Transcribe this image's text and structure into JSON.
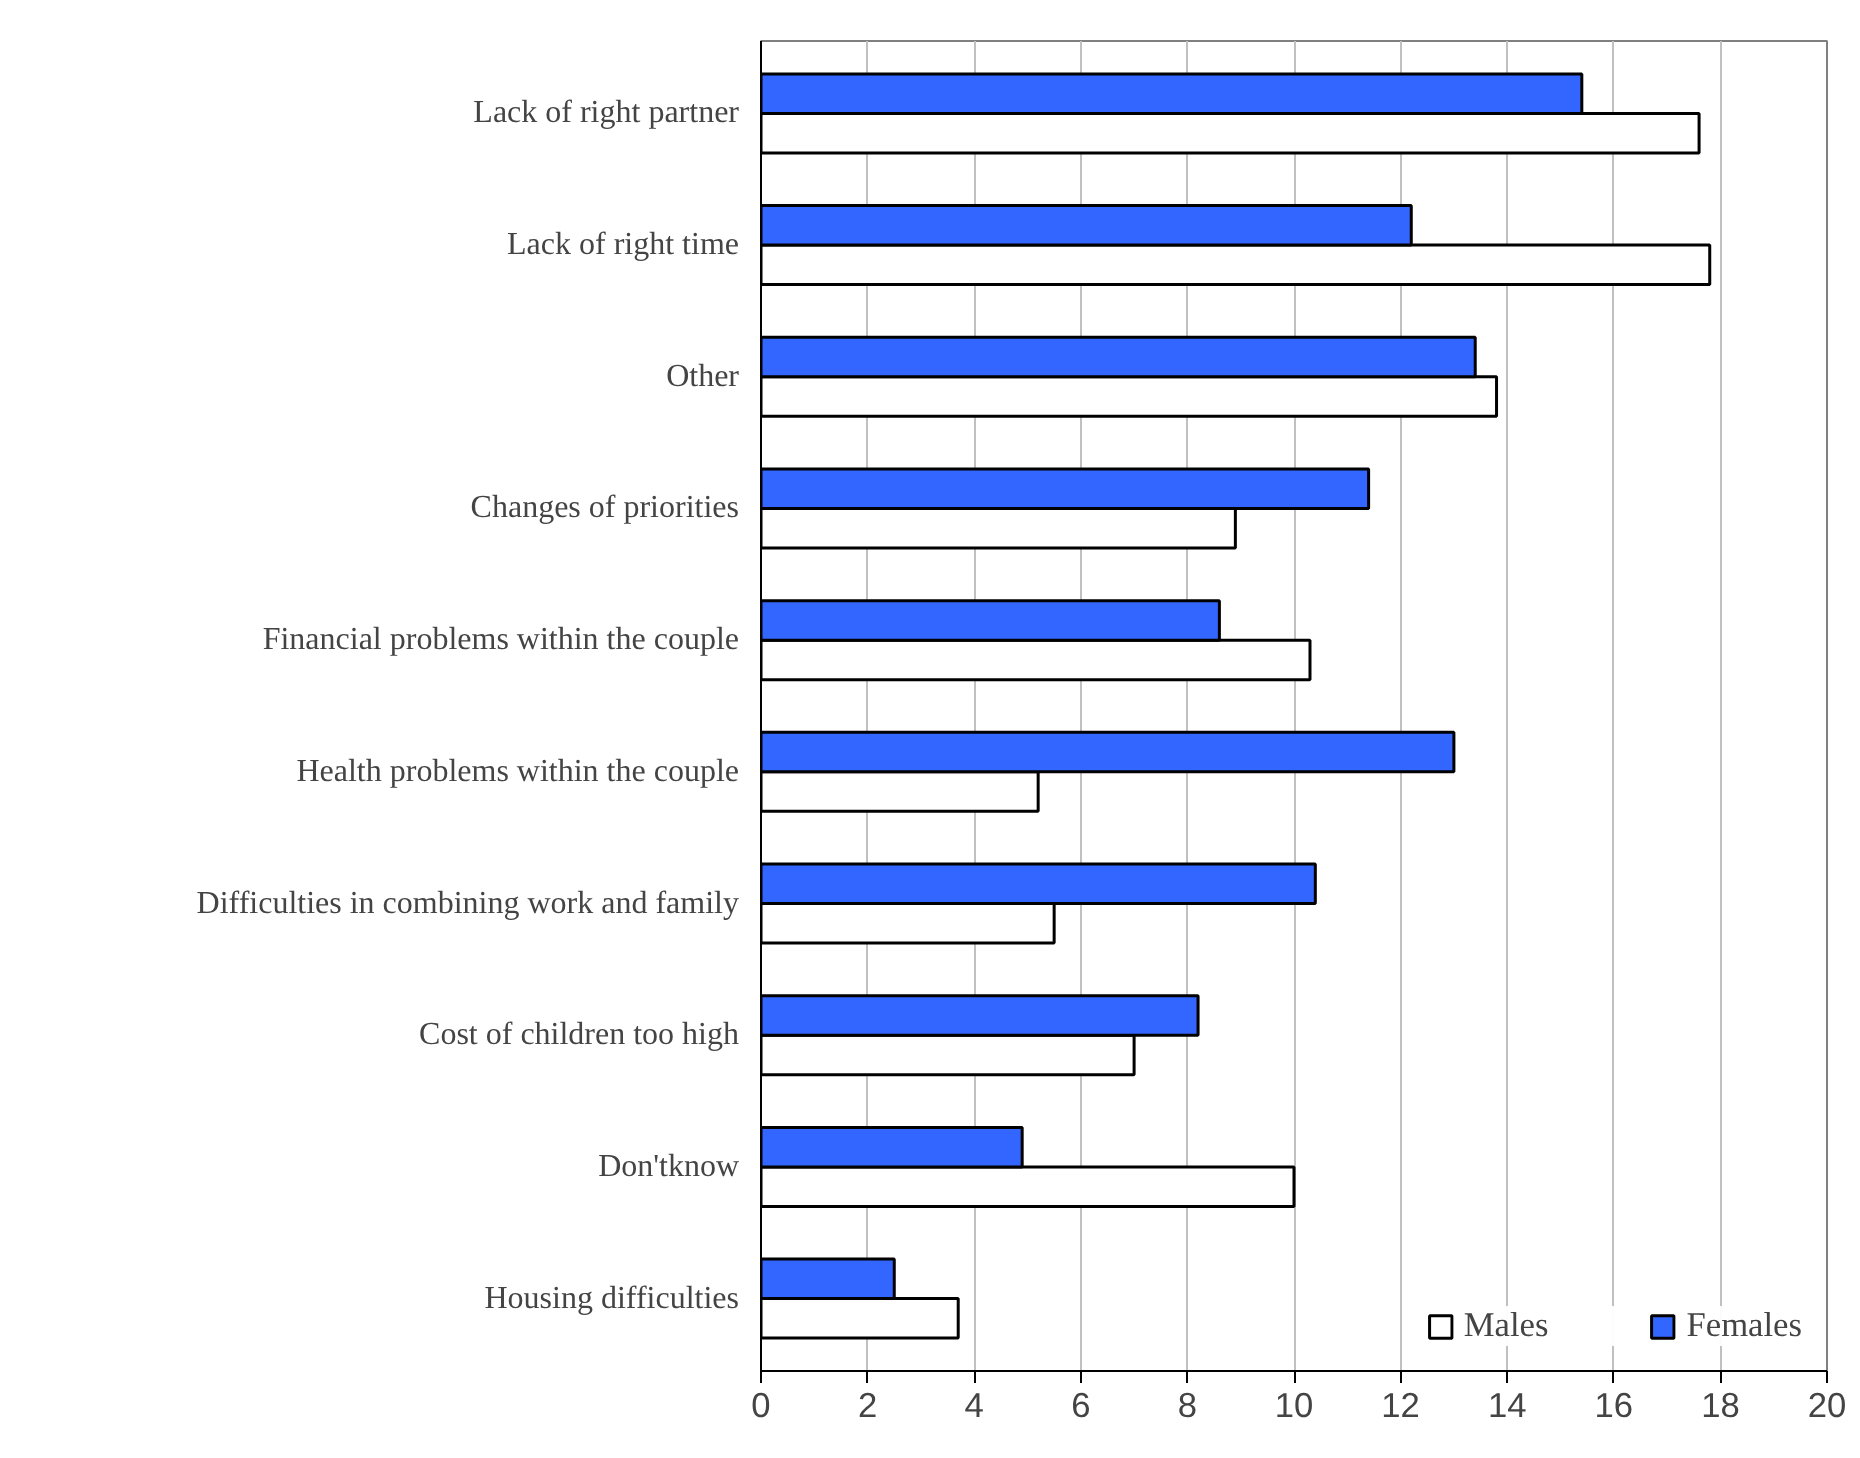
{
  "chart_data": {
    "type": "bar",
    "orientation": "horizontal",
    "categories": [
      "Lack of right partner",
      "Lack of right time",
      "Other",
      "Changes of priorities",
      "Financial problems within the couple",
      "Health problems within the couple",
      "Difficulties in combining work and family",
      "Cost of children too high",
      "Don'tknow",
      "Housing difficulties"
    ],
    "series": [
      {
        "name": "Males",
        "color": "#ffffff",
        "values": [
          17.6,
          17.8,
          13.8,
          8.9,
          10.3,
          5.2,
          5.5,
          7.0,
          10.0,
          3.7
        ]
      },
      {
        "name": "Females",
        "color": "#3366ff",
        "values": [
          15.4,
          12.2,
          13.4,
          11.4,
          8.6,
          13.0,
          10.4,
          8.2,
          4.9,
          2.5
        ]
      }
    ],
    "xlim": [
      0,
      20
    ],
    "xticks": [
      0,
      2,
      4,
      6,
      8,
      10,
      12,
      14,
      16,
      18,
      20
    ],
    "grid": "x",
    "legend": "bottom right"
  }
}
